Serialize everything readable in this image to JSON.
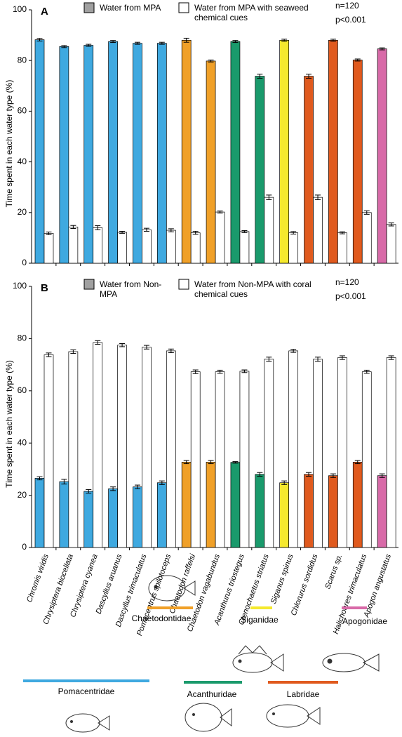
{
  "chart_data": [
    {
      "type": "bar",
      "panel": "A",
      "ylabel": "Time spent in each water type (%)",
      "ylim": [
        0,
        100
      ],
      "yticks": [
        0,
        20,
        40,
        60,
        80,
        100
      ],
      "annotations": [
        "n=120",
        "p<0.001"
      ],
      "series": [
        {
          "name": "Water from MPA",
          "color": "#a0a0a0",
          "colors": [
            "#3fa9e0",
            "#3fa9e0",
            "#3fa9e0",
            "#3fa9e0",
            "#3fa9e0",
            "#3fa9e0",
            "#f0a028",
            "#f0a028",
            "#1a9a6c",
            "#1a9a6c",
            "#f5e92e",
            "#e05a1e",
            "#e05a1e",
            "#e05a1e",
            "#d86aa8"
          ],
          "values": [
            88.2,
            85.5,
            86,
            87.5,
            86.8,
            86.8,
            88,
            79.8,
            87.5,
            73.8,
            88,
            73.8,
            88,
            80.2,
            84.6
          ],
          "errors": [
            0.5,
            0.4,
            0.4,
            0.4,
            0.4,
            0.4,
            0.8,
            0.4,
            0.4,
            0.8,
            0.4,
            0.8,
            0.4,
            0.4,
            0.4
          ]
        },
        {
          "name": "Water from MPA with seaweed chemical cues",
          "color": "#ffffff",
          "values": [
            11.8,
            14.3,
            14,
            12.2,
            13.2,
            13,
            12,
            20.2,
            12.5,
            26,
            12,
            26,
            12,
            20,
            15.3
          ],
          "errors": [
            0.5,
            0.6,
            0.8,
            0.4,
            0.6,
            0.6,
            0.6,
            0.4,
            0.4,
            0.9,
            0.5,
            0.9,
            0.4,
            0.7,
            0.6
          ]
        }
      ]
    },
    {
      "type": "bar",
      "panel": "B",
      "ylabel": "Time spent in each water type (%)",
      "ylim": [
        0,
        100
      ],
      "yticks": [
        0,
        20,
        40,
        60,
        80,
        100
      ],
      "annotations": [
        "n=120",
        "p<0.001"
      ],
      "categories": [
        "Chromis viridis",
        "Chrysiptera biocellata",
        "Chrysiptera cyanea",
        "Dascyllus aruanus",
        "Dascyllus trimaculatus",
        "Pomacentrus spilotoceps",
        "Chaetodon raffelsi",
        "Chaetodon vagabundus",
        "Acanthurus triostegus",
        "Ctenochaetus striatus",
        "Siganus spinus",
        "Chlorurus sordidus",
        "Scarus sp.",
        "Halichoeres trimaculatus",
        "Apogon angustatus"
      ],
      "series": [
        {
          "name": "Water from Non-MPA",
          "color": "#a0a0a0",
          "colors": [
            "#3fa9e0",
            "#3fa9e0",
            "#3fa9e0",
            "#3fa9e0",
            "#3fa9e0",
            "#3fa9e0",
            "#f0a028",
            "#f0a028",
            "#1a9a6c",
            "#1a9a6c",
            "#f5e92e",
            "#e05a1e",
            "#e05a1e",
            "#e05a1e",
            "#d86aa8"
          ],
          "values": [
            26.5,
            25.2,
            21.5,
            22.5,
            23.2,
            24.8,
            32.7,
            32.7,
            32.6,
            28,
            24.8,
            28,
            27.5,
            32.7,
            27.5
          ],
          "errors": [
            0.6,
            0.9,
            0.7,
            0.7,
            0.7,
            0.7,
            0.6,
            0.6,
            0.3,
            0.7,
            0.7,
            0.7,
            0.7,
            0.6,
            0.7
          ]
        },
        {
          "name": "Water from Non-MPA with coral chemical cues",
          "color": "#ffffff",
          "values": [
            73.8,
            75,
            78.5,
            77.5,
            76.7,
            75.3,
            67.3,
            67.3,
            67.5,
            72.1,
            75.3,
            72.1,
            72.7,
            67.3,
            72.7
          ],
          "errors": [
            0.7,
            0.7,
            0.7,
            0.6,
            0.7,
            0.7,
            0.7,
            0.6,
            0.5,
            0.8,
            0.6,
            0.8,
            0.7,
            0.6,
            0.7
          ]
        }
      ]
    }
  ],
  "families": [
    {
      "name": "Chaetodontidae",
      "color": "#f0a028"
    },
    {
      "name": "Siganidae",
      "color": "#f5e92e"
    },
    {
      "name": "Apogonidae",
      "color": "#d86aa8"
    },
    {
      "name": "Pomacentridae",
      "color": "#3fa9e0"
    },
    {
      "name": "Acanthuridae",
      "color": "#1a9a6c"
    },
    {
      "name": "Labridae",
      "color": "#e05a1e"
    }
  ]
}
